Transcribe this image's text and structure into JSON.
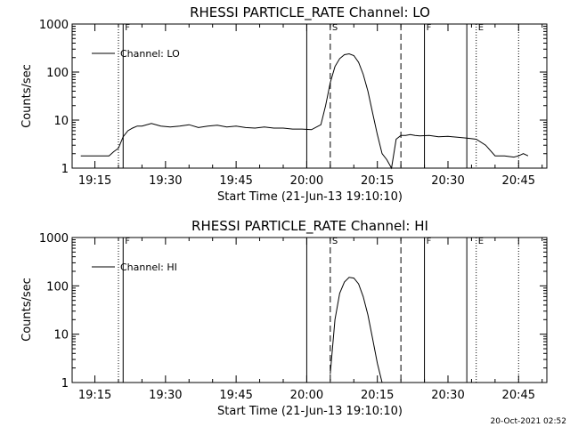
{
  "chart_data": [
    {
      "type": "line",
      "title": "RHESSI PARTICLE_RATE Channel: LO",
      "xlabel": "Start Time (21-Jun-13 19:10:10)",
      "ylabel": "Counts/sec",
      "y_scale": "log",
      "ylim": [
        1,
        1000
      ],
      "xlim": [
        "19:10:10",
        "20:51:00"
      ],
      "x_ticks": [
        "19:15",
        "19:30",
        "19:45",
        "20:00",
        "20:15",
        "20:30",
        "20:45"
      ],
      "y_ticks": [
        "1",
        "10",
        "100",
        "1000"
      ],
      "legend": {
        "placement": "top-left",
        "entries": [
          "Channel: LO"
        ]
      },
      "series": [
        {
          "name": "Channel: LO",
          "x": [
            "19:12",
            "19:13",
            "19:14",
            "19:15",
            "19:16",
            "19:17",
            "19:18",
            "19:19",
            "19:20",
            "19:21",
            "19:22",
            "19:23",
            "19:24",
            "19:25",
            "19:27",
            "19:29",
            "19:31",
            "19:33",
            "19:35",
            "19:37",
            "19:39",
            "19:41",
            "19:43",
            "19:45",
            "19:47",
            "19:49",
            "19:51",
            "19:53",
            "19:55",
            "19:57",
            "19:59",
            "20:01",
            "20:03",
            "20:04",
            "20:05",
            "20:06",
            "20:07",
            "20:08",
            "20:09",
            "20:10",
            "20:11",
            "20:12",
            "20:13",
            "20:14",
            "20:15",
            "20:16",
            "20:17",
            "20:18",
            "20:19",
            "20:20",
            "20:21",
            "20:22",
            "20:23",
            "20:24",
            "20:26",
            "20:28",
            "20:30",
            "20:32",
            "20:34",
            "20:36",
            "20:38",
            "20:40",
            "20:42",
            "20:44",
            "20:45",
            "20:46",
            "20:47"
          ],
          "y": [
            1.8,
            1.8,
            1.8,
            1.8,
            1.8,
            1.8,
            1.8,
            2.2,
            2.6,
            4.5,
            6.0,
            6.8,
            7.5,
            7.5,
            8.5,
            7.5,
            7.2,
            7.5,
            8.0,
            7.0,
            7.5,
            7.8,
            7.2,
            7.5,
            7.0,
            6.8,
            7.2,
            6.8,
            6.8,
            6.5,
            6.5,
            6.3,
            8.0,
            20,
            60,
            130,
            190,
            230,
            240,
            220,
            160,
            90,
            40,
            14,
            5,
            2.0,
            1.5,
            1.0,
            4.0,
            4.8,
            4.8,
            5.0,
            4.8,
            4.7,
            4.8,
            4.5,
            4.6,
            4.4,
            4.2,
            4.0,
            3.0,
            1.8,
            1.8,
            1.7,
            1.8,
            2.0,
            1.8
          ]
        }
      ],
      "annotations": [
        "F",
        "S",
        "F",
        "E"
      ]
    },
    {
      "type": "line",
      "title": "RHESSI PARTICLE_RATE Channel: HI",
      "xlabel": "Start Time (21-Jun-13 19:10:10)",
      "ylabel": "Counts/sec",
      "y_scale": "log",
      "ylim": [
        1,
        1000
      ],
      "xlim": [
        "19:10:10",
        "20:51:00"
      ],
      "x_ticks": [
        "19:15",
        "19:30",
        "19:45",
        "20:00",
        "20:15",
        "20:30",
        "20:45"
      ],
      "y_ticks": [
        "1",
        "10",
        "100",
        "1000"
      ],
      "legend": {
        "placement": "top-left",
        "entries": [
          "Channel: HI"
        ]
      },
      "series": [
        {
          "name": "Channel: HI",
          "x": [
            "20:05",
            "20:06",
            "20:07",
            "20:08",
            "20:09",
            "20:10",
            "20:11",
            "20:12",
            "20:13",
            "20:14",
            "20:15",
            "20:16"
          ],
          "y": [
            1.5,
            20,
            70,
            120,
            150,
            145,
            110,
            60,
            25,
            8,
            2.5,
            1.0
          ]
        }
      ],
      "annotations": [
        "F",
        "S",
        "F",
        "E"
      ]
    }
  ],
  "vertical_markers": [
    {
      "time": "19:20",
      "style": "dotted"
    },
    {
      "time": "19:21",
      "style": "solid"
    },
    {
      "time": "20:00",
      "style": "solid"
    },
    {
      "time": "20:05",
      "style": "dashed"
    },
    {
      "time": "20:20",
      "style": "dashed"
    },
    {
      "time": "20:25",
      "style": "solid"
    },
    {
      "time": "20:34",
      "style": "solid"
    },
    {
      "time": "20:36",
      "style": "dotted"
    },
    {
      "time": "20:45",
      "style": "dotted"
    }
  ],
  "marker_letters": [
    {
      "time": "19:21",
      "text": "F"
    },
    {
      "time": "20:05",
      "text": "S"
    },
    {
      "time": "20:25",
      "text": "F"
    },
    {
      "time": "20:36",
      "text": "E"
    }
  ],
  "footer_stamp": "20-Oct-2021 02:52",
  "colors": {
    "background": "#ffffff",
    "foreground": "#000000"
  }
}
